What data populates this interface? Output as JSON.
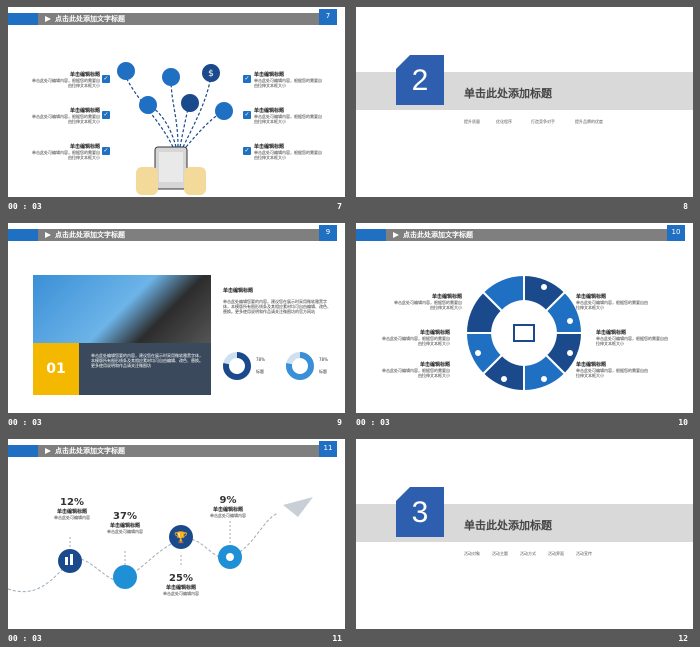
{
  "colors": {
    "accent": "#1f6fc2",
    "dark_blue": "#1a4a8c",
    "gray_bar": "#7f7f7f",
    "bg": "#595959"
  },
  "slides": {
    "s7": {
      "header": "点击此处添加文字标题",
      "num": "7",
      "footer_time": "00 : 03",
      "footer_num": "7",
      "items": [
        {
          "title": "单击编辑标题",
          "body": "单击此处可编辑内容，根据您的需要自由拉伸文本框大小"
        }
      ]
    },
    "s8": {
      "num_big": "2",
      "title": "单击此处添加标题",
      "subs": [
        "提升质量",
        "优化程序",
        "打造竞争对手",
        "提升品牌的优度"
      ],
      "footer_num": "8"
    },
    "s9": {
      "header": "点击此处添加文字标题",
      "num": "9",
      "footer_time": "00 : 03",
      "footer_num": "9",
      "badge": "01",
      "right_title": "单击编辑标题",
      "right_body": "单击此处编辑您要的内容，建议您在展示时采用微软雅黑字体，本模版所有图形线条及其相应素材均可自由编辑、改色、替换。更多使用说明和作品请关注微图坊的官方网站",
      "card_body": "单击此处编辑您要的内容，建议您在展示时采用微软雅黑字体，本模版所有图形线条及其相应素材均可自由编辑、改色、替换。更多使用说明和作品请关注微图坊",
      "donut1": {
        "value": "78%",
        "label": "标题",
        "fraction": 0.78
      },
      "donut2": {
        "value": "78%",
        "label": "标题",
        "fraction": 0.78
      }
    },
    "s10": {
      "header": "点击此处添加文字标题",
      "num": "10",
      "footer_time": "00 : 03",
      "footer_num": "10",
      "item_title": "单击编辑标题",
      "item_body": "单击此处可编辑内容，根据您的需要自由拉伸文本框大小"
    },
    "s11": {
      "header": "点击此处添加文字标题",
      "num": "11",
      "footer_time": "00 : 03",
      "footer_num": "11",
      "points": [
        {
          "pct": "12%",
          "title": "单击编辑标题",
          "body": "单击此处可编辑内容"
        },
        {
          "pct": "37%",
          "title": "单击编辑标题",
          "body": "单击此处可编辑内容"
        },
        {
          "pct": "25%",
          "title": "单击编辑标题",
          "body": "单击此处可编辑内容"
        },
        {
          "pct": "9%",
          "title": "单击编辑标题",
          "body": "单击此处可编辑内容"
        }
      ]
    },
    "s12": {
      "num_big": "3",
      "title": "单击此处添加标题",
      "subs": [
        "活动对象",
        "活动主题",
        "活动方式",
        "活动界面",
        "活动宣传"
      ],
      "footer_num": "12"
    }
  }
}
